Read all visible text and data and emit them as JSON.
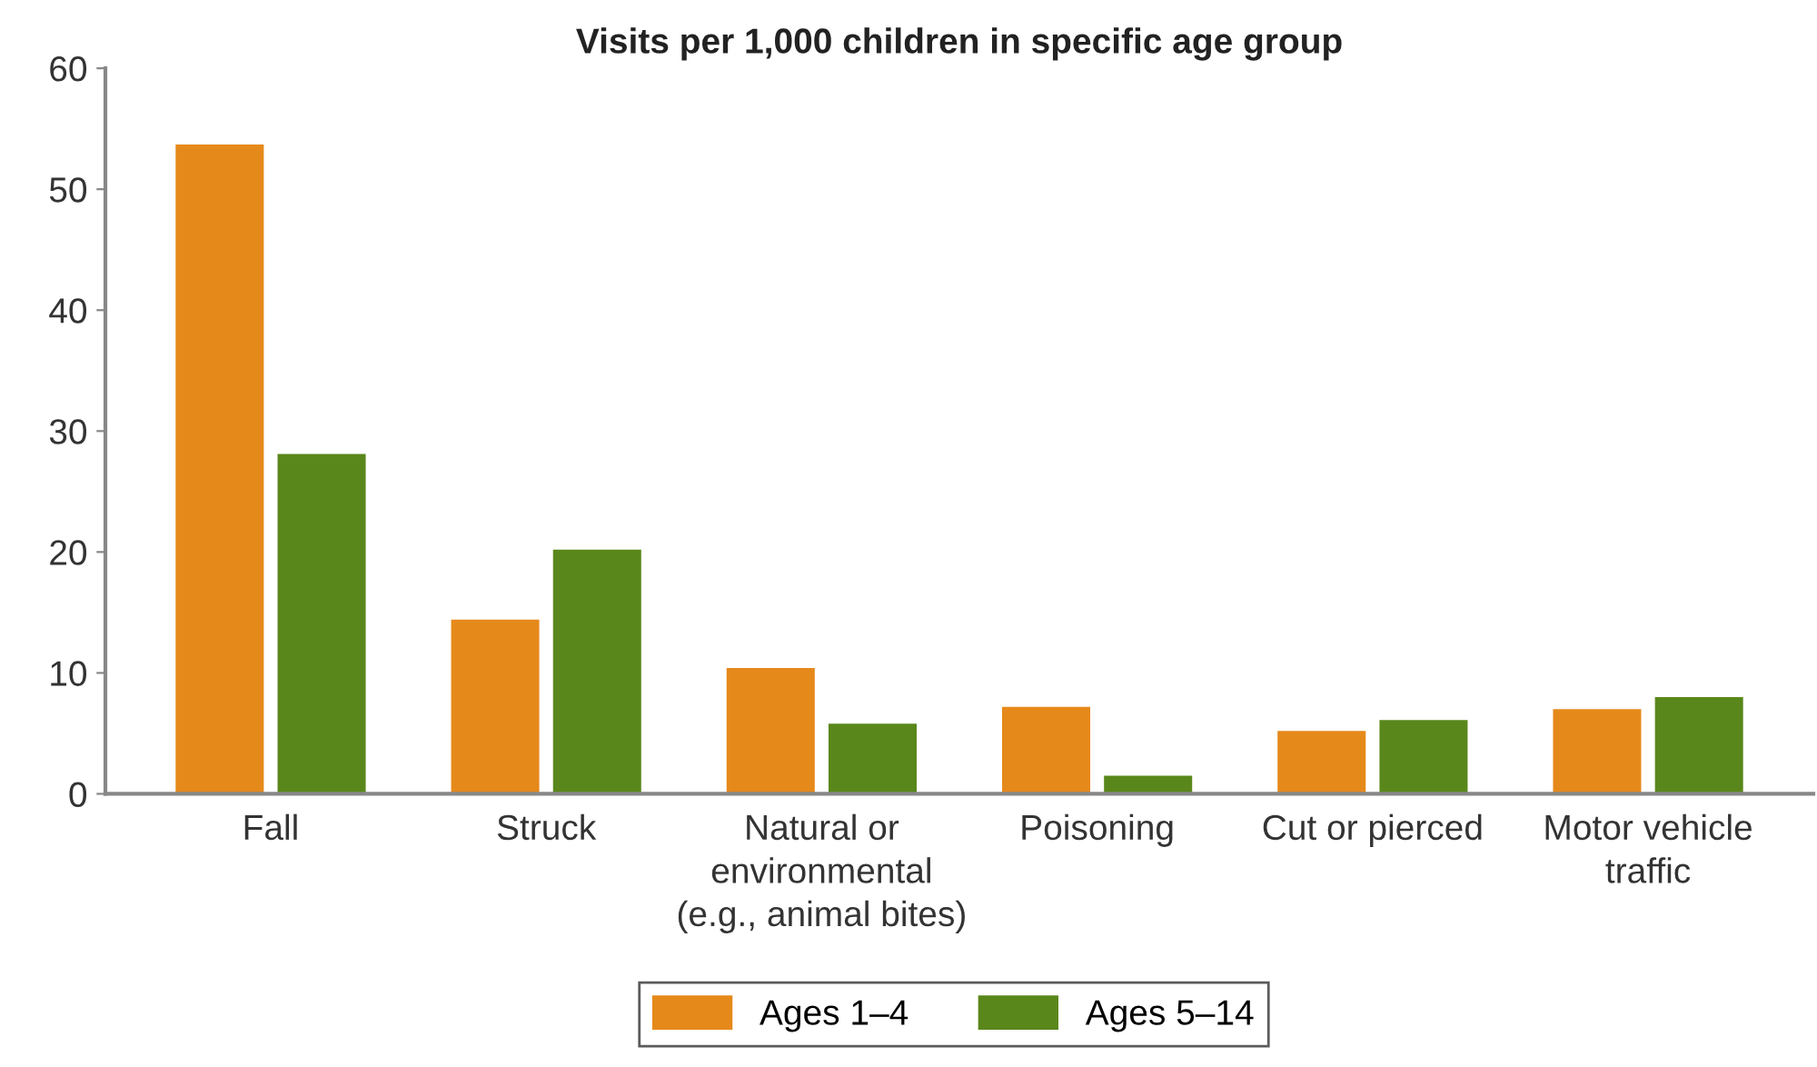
{
  "chart_data": {
    "type": "bar",
    "title": "Visits per 1,000 children in specific age group",
    "categories": [
      "Fall",
      "Struck",
      "Natural or\nenvironmental\n(e.g., animal bites)",
      "Poisoning",
      "Cut or pierced",
      "Motor vehicle\ntraffic"
    ],
    "series": [
      {
        "name": "Ages 1–4",
        "color": "#e6891b",
        "values": [
          53.7,
          14.4,
          10.4,
          7.2,
          5.2,
          7.0
        ]
      },
      {
        "name": "Ages 5–14",
        "color": "#5a871b",
        "values": [
          28.1,
          20.2,
          5.8,
          1.5,
          6.1,
          8.0
        ]
      }
    ],
    "ylim": [
      0,
      60
    ],
    "yticks": [
      0,
      10,
      20,
      30,
      40,
      50,
      60
    ],
    "grid": false,
    "legend": "bottom"
  }
}
